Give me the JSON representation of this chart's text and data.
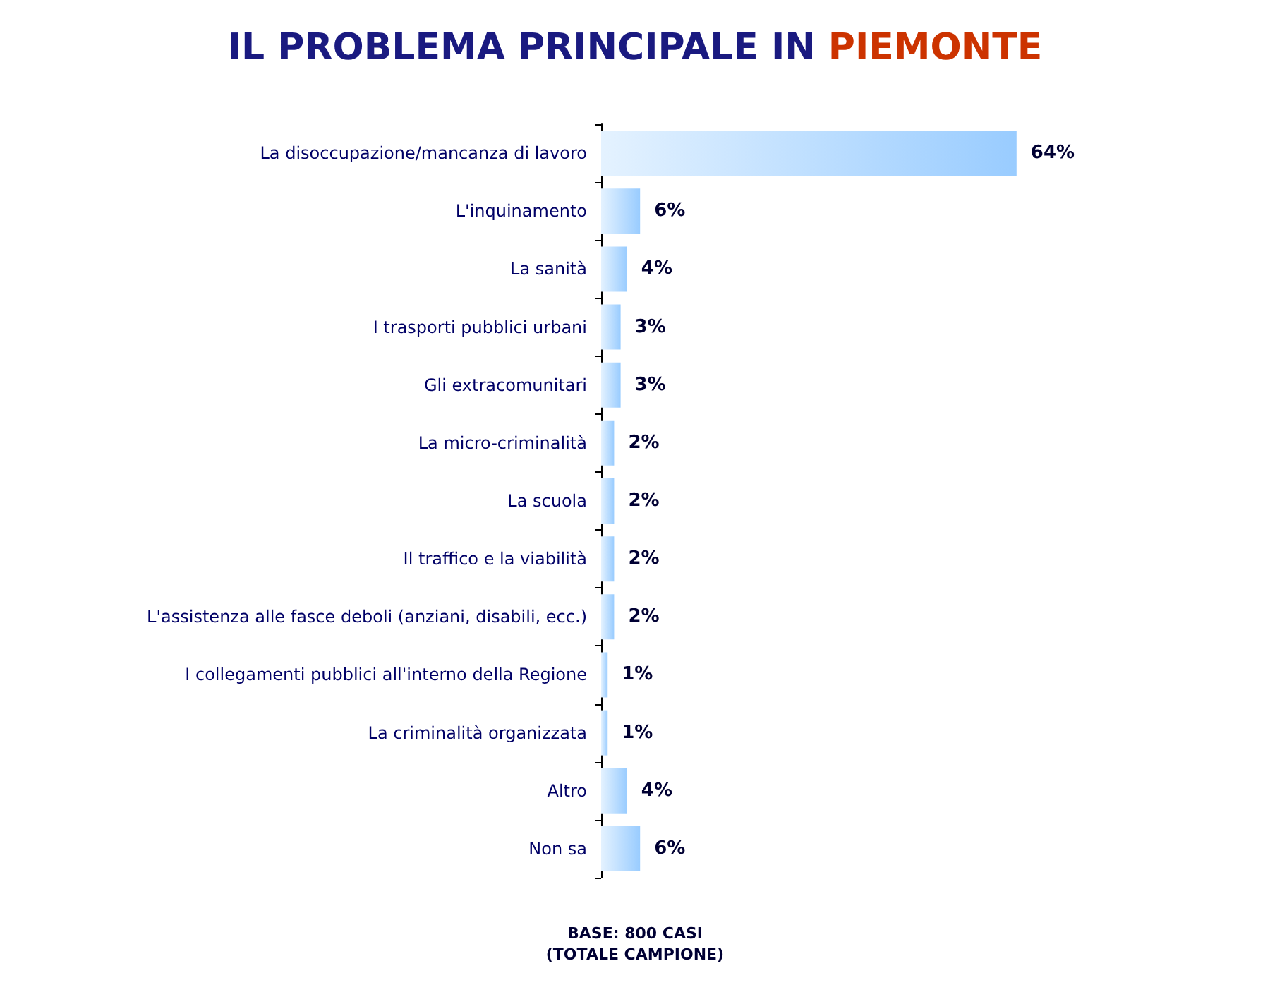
{
  "chart_data": {
    "type": "bar",
    "orientation": "horizontal",
    "title": "IL PROBLEMA PRINCIPALE IN PIEMONTE",
    "categories": [
      "La disoccupazione/mancanza di lavoro",
      "L'inquinamento",
      "La sanità",
      "I trasporti pubblici urbani",
      "Gli extracomunitari",
      "La micro-criminalità",
      "La scuola",
      "Il traffico e la viabilità",
      "L'assistenza alle fasce deboli (anziani, disabili, ecc.)",
      "I collegamenti pubblici all'interno della Regione",
      "La criminalità organizzata",
      "Altro",
      "Non sa"
    ],
    "values": [
      64,
      6,
      4,
      3,
      3,
      2,
      2,
      2,
      2,
      1,
      1,
      4,
      6
    ],
    "value_labels": [
      "64%",
      "6%",
      "4%",
      "3%",
      "3%",
      "2%",
      "2%",
      "2%",
      "2%",
      "1%",
      "1%",
      "4%",
      "6%"
    ],
    "color": "#99ccff",
    "annotations": [
      "BASE: 800 CASI",
      "(TOTALE CAMPIONE)"
    ]
  }
}
